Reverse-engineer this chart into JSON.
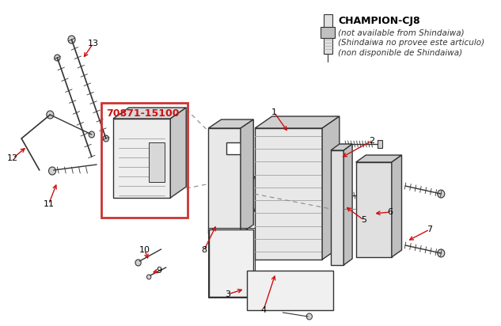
{
  "bg_color": "#ffffff",
  "line_color": "#cc1111",
  "part_number_text": "70871-15100",
  "part_number_color": "#cc1111",
  "box_color": "#cc3333",
  "champion_title": "CHAMPION-CJ8",
  "champion_line1": "(not available from Shindaiwa)",
  "champion_line2": "(Shindaiwa no provee este articulo)",
  "champion_line3": "(non disponible de Shindaiwa)",
  "draw_color": "#333333",
  "label_color": "#000000",
  "figw": 6.33,
  "figh": 4.12,
  "dpi": 100
}
